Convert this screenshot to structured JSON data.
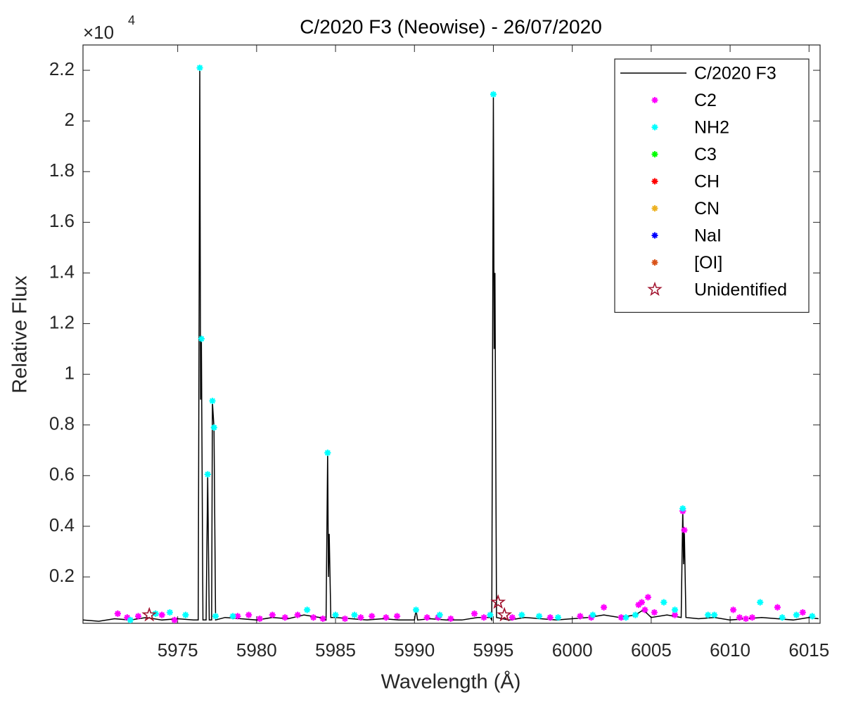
{
  "chart_data": {
    "type": "line",
    "title": "C/2020 F3 (Neowise) - 26/07/2020",
    "xlabel": "Wavelength (Å)",
    "ylabel": "Relative Flux",
    "y_multiplier_base": "×10",
    "y_multiplier_exponent": "4",
    "xlim": [
      5969,
      6015.7
    ],
    "ylim": [
      0.017,
      2.3
    ],
    "xticks": [
      5975,
      5980,
      5985,
      5990,
      5995,
      6000,
      6005,
      6010,
      6015
    ],
    "yticks": [
      0.2,
      0.4,
      0.6,
      0.8,
      1,
      1.2,
      1.4,
      1.6,
      1.8,
      2,
      2.2
    ],
    "legend_position": "top-right",
    "series": [
      {
        "name": "C/2020 F3",
        "color": "#000000",
        "marker": "line",
        "x": [
          5969,
          5970,
          5971,
          5972,
          5973,
          5974,
          5975,
          5976,
          5976.3,
          5976.4,
          5976.45,
          5976.5,
          5976.6,
          5976.8,
          5976.9,
          5977.0,
          5977.15,
          5977.2,
          5977.3,
          5977.4,
          5978,
          5979,
          5980,
          5981,
          5982,
          5983,
          5984,
          5984.4,
          5984.5,
          5984.55,
          5984.6,
          5984.7,
          5985,
          5986,
          5987,
          5988,
          5989,
          5990,
          5990.1,
          5990.2,
          5991,
          5992,
          5993,
          5994,
          5994.8,
          5994.9,
          5995.0,
          5995.05,
          5995.1,
          5995.2,
          5996,
          5997,
          5998,
          5999,
          6000,
          6001,
          6002,
          6003,
          6004,
          6004.5,
          6005,
          6006,
          6006.9,
          6007.0,
          6007.05,
          6007.1,
          6007.2,
          6008,
          6009,
          6010,
          6011,
          6012,
          6013,
          6014,
          6015,
          6015.6
        ],
        "values": [
          0.03,
          0.025,
          0.035,
          0.03,
          0.04,
          0.03,
          0.035,
          0.03,
          0.03,
          2.21,
          0.9,
          1.14,
          0.03,
          0.03,
          0.6,
          0.03,
          0.03,
          0.89,
          0.79,
          0.03,
          0.04,
          0.035,
          0.03,
          0.04,
          0.035,
          0.05,
          0.04,
          0.03,
          0.69,
          0.2,
          0.37,
          0.04,
          0.04,
          0.035,
          0.03,
          0.035,
          0.03,
          0.03,
          0.07,
          0.03,
          0.035,
          0.03,
          0.03,
          0.04,
          0.04,
          0.03,
          2.1,
          1.1,
          1.4,
          0.04,
          0.03,
          0.04,
          0.035,
          0.03,
          0.035,
          0.04,
          0.05,
          0.04,
          0.05,
          0.07,
          0.04,
          0.05,
          0.04,
          0.47,
          0.25,
          0.38,
          0.04,
          0.035,
          0.04,
          0.03,
          0.035,
          0.04,
          0.035,
          0.03,
          0.04,
          0.035
        ]
      },
      {
        "name": "C2",
        "color": "#ff00ff",
        "marker": "asterisk",
        "x": [
          5971.2,
          5971.8,
          5972.5,
          5974,
          5974.8,
          5978.8,
          5979.5,
          5980.2,
          5981,
          5981.8,
          5982.6,
          5983.6,
          5984.2,
          5985.6,
          5986.6,
          5987.3,
          5988.2,
          5988.9,
          5990.8,
          5991.5,
          5992.3,
          5993.8,
          5994.4,
          5996.2,
          5998.6,
          6000.5,
          6001.2,
          6002,
          6003.1,
          6004.2,
          6004.4,
          6004.6,
          6004.8,
          6005.2,
          6006.5,
          6007,
          6007.1,
          6010.2,
          6010.6,
          6011,
          6011.4,
          6013,
          6014.6
        ],
        "values": [
          0.055,
          0.04,
          0.045,
          0.05,
          0.03,
          0.045,
          0.05,
          0.035,
          0.05,
          0.04,
          0.05,
          0.04,
          0.035,
          0.035,
          0.04,
          0.045,
          0.04,
          0.045,
          0.04,
          0.04,
          0.035,
          0.055,
          0.04,
          0.04,
          0.04,
          0.045,
          0.04,
          0.08,
          0.04,
          0.09,
          0.1,
          0.07,
          0.12,
          0.06,
          0.05,
          0.46,
          0.385,
          0.07,
          0.04,
          0.035,
          0.04,
          0.08,
          0.06
        ]
      },
      {
        "name": "NH2",
        "color": "#00ffff",
        "marker": "asterisk",
        "x": [
          5972,
          5973.6,
          5974.5,
          5975.5,
          5976.4,
          5976.5,
          5976.9,
          5977.2,
          5977.3,
          5977.4,
          5978.5,
          5983.2,
          5984.5,
          5985,
          5986.2,
          5990.1,
          5991.6,
          5994.8,
          5995,
          5996.8,
          5997.9,
          5999.1,
          6001.3,
          6003.4,
          6004,
          6005.8,
          6006.5,
          6007,
          6008.6,
          6009,
          6011.9,
          6013.3,
          6014.2,
          6015.2
        ],
        "values": [
          0.03,
          0.055,
          0.06,
          0.05,
          2.21,
          1.14,
          0.605,
          0.895,
          0.79,
          0.045,
          0.045,
          0.07,
          0.69,
          0.05,
          0.05,
          0.07,
          0.05,
          0.05,
          2.105,
          0.05,
          0.045,
          0.04,
          0.05,
          0.04,
          0.05,
          0.1,
          0.07,
          0.47,
          0.05,
          0.05,
          0.1,
          0.04,
          0.05,
          0.045
        ]
      },
      {
        "name": "C3",
        "color": "#00ff00",
        "marker": "asterisk",
        "x": [],
        "values": []
      },
      {
        "name": "CH",
        "color": "#ff0000",
        "marker": "asterisk",
        "x": [],
        "values": []
      },
      {
        "name": "CN",
        "color": "#edb120",
        "marker": "asterisk",
        "x": [],
        "values": []
      },
      {
        "name": "NaI",
        "color": "#0000ff",
        "marker": "asterisk",
        "x": [],
        "values": []
      },
      {
        "name": "[OI]",
        "color": "#d95319",
        "marker": "asterisk",
        "x": [],
        "values": []
      },
      {
        "name": "Unidentified",
        "color": "#a2142f",
        "marker": "pentagram",
        "x": [
          5973.2,
          5995.3,
          5995.7
        ],
        "values": [
          0.05,
          0.1,
          0.05
        ]
      }
    ]
  }
}
